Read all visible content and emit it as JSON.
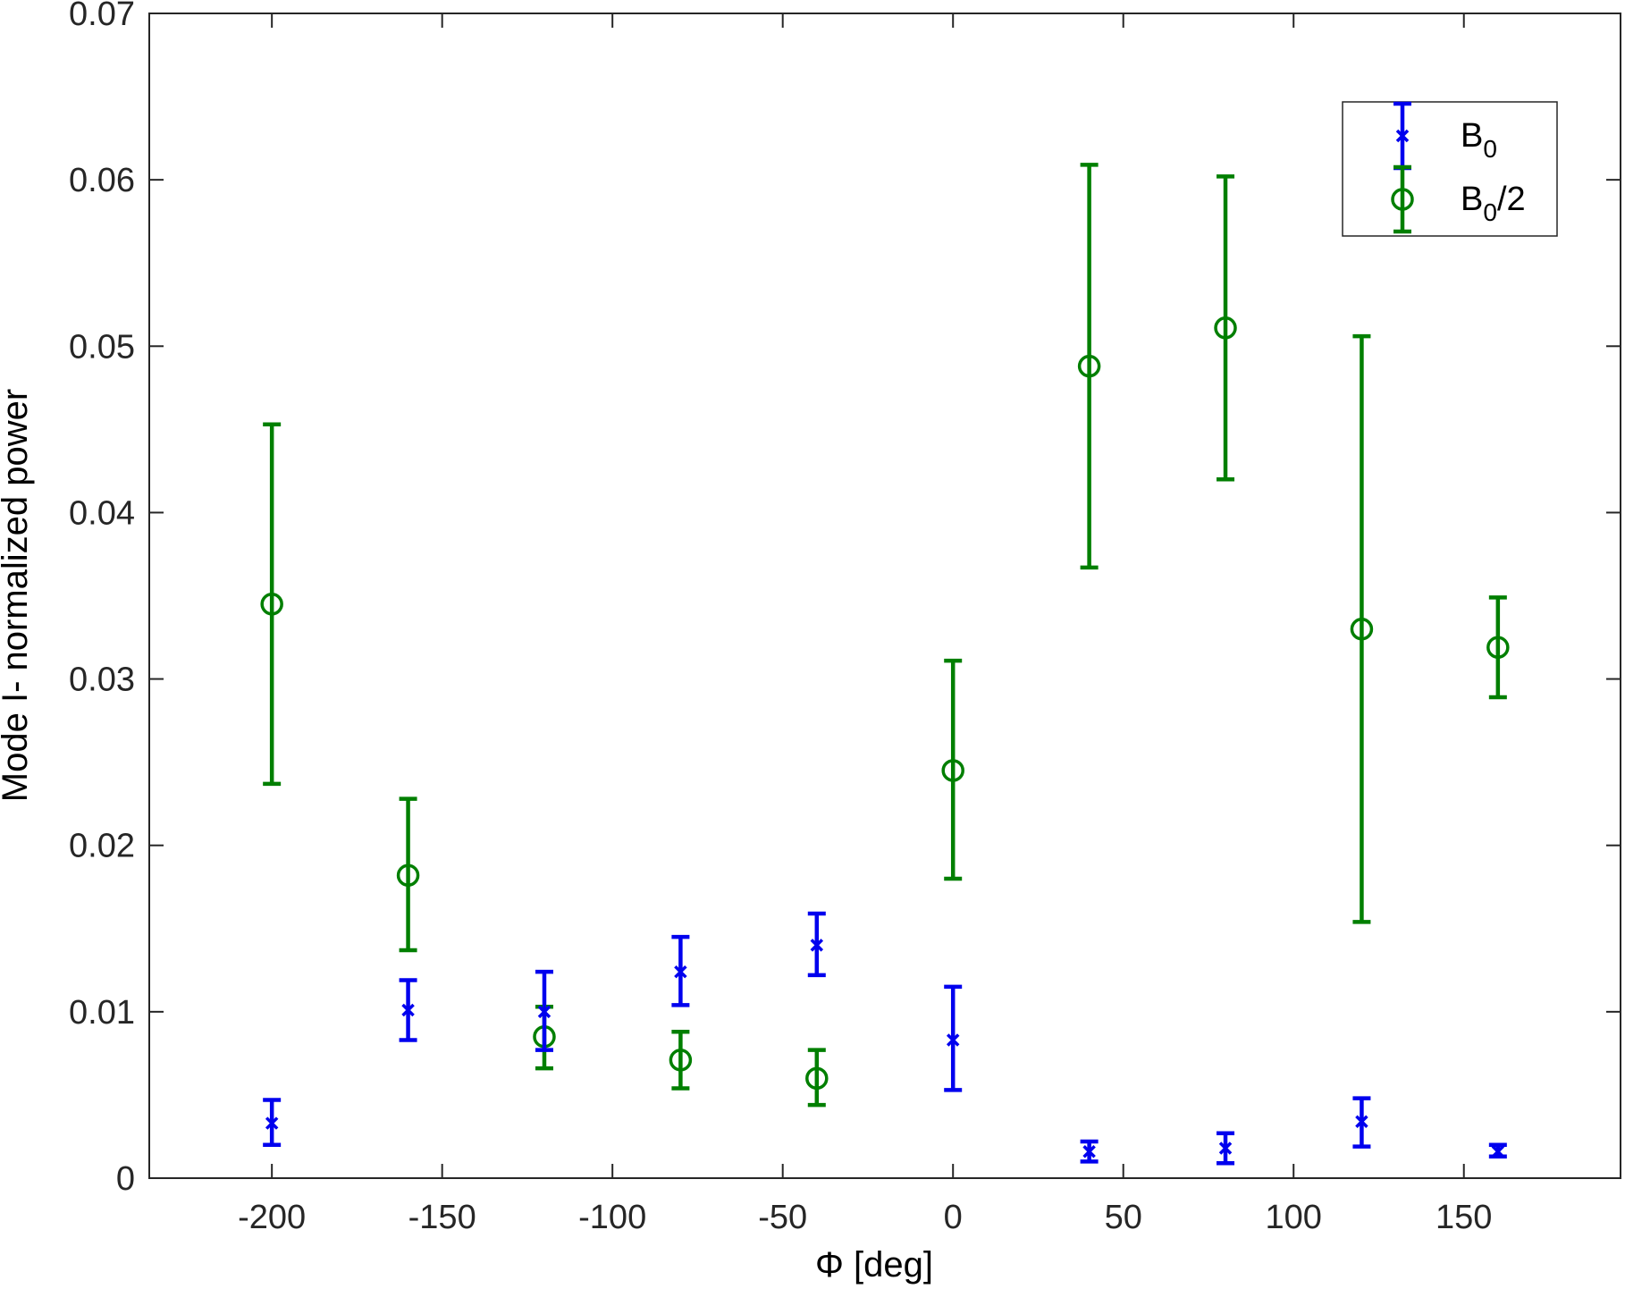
{
  "chart_data": {
    "type": "scatter",
    "title": "",
    "xlabel": "Φ [deg]",
    "ylabel": "Mode I- normalized power",
    "xlim": [
      -236,
      196
    ],
    "ylim": [
      0,
      0.07
    ],
    "xticks": [
      -200,
      -150,
      -100,
      -50,
      0,
      50,
      100,
      150
    ],
    "xtick_labels": [
      "-200",
      "-150",
      "-100",
      "-50",
      "0",
      "50",
      "100",
      "150"
    ],
    "yticks": [
      0,
      0.01,
      0.02,
      0.03,
      0.04,
      0.05,
      0.06,
      0.07
    ],
    "ytick_labels": [
      "0",
      "0.01",
      "0.02",
      "0.03",
      "0.04",
      "0.05",
      "0.06",
      "0.07"
    ],
    "grid": false,
    "legend_position": "top-right",
    "series": [
      {
        "name": "B0",
        "name_base": "B",
        "name_sub": "0",
        "name_suffix": "",
        "color": "#0000ee",
        "marker": "x",
        "points": [
          {
            "x": -200,
            "y": 0.0033,
            "low": 0.002,
            "high": 0.0047
          },
          {
            "x": -160,
            "y": 0.0101,
            "low": 0.0083,
            "high": 0.0119
          },
          {
            "x": -120,
            "y": 0.01,
            "low": 0.0077,
            "high": 0.0124
          },
          {
            "x": -80,
            "y": 0.0124,
            "low": 0.0104,
            "high": 0.0145
          },
          {
            "x": -40,
            "y": 0.014,
            "low": 0.0122,
            "high": 0.0159
          },
          {
            "x": 0,
            "y": 0.0083,
            "low": 0.0053,
            "high": 0.0115
          },
          {
            "x": 40,
            "y": 0.0016,
            "low": 0.001,
            "high": 0.0022
          },
          {
            "x": 80,
            "y": 0.0018,
            "low": 0.0009,
            "high": 0.0027
          },
          {
            "x": 120,
            "y": 0.0034,
            "low": 0.0019,
            "high": 0.0048
          },
          {
            "x": 160,
            "y": 0.0016,
            "low": 0.0013,
            "high": 0.002
          }
        ]
      },
      {
        "name": "B0/2",
        "name_base": "B",
        "name_sub": "0",
        "name_suffix": "/2",
        "color": "#007f00",
        "marker": "o",
        "points": [
          {
            "x": -200,
            "y": 0.0345,
            "low": 0.0237,
            "high": 0.0453
          },
          {
            "x": -160,
            "y": 0.0182,
            "low": 0.0137,
            "high": 0.0228
          },
          {
            "x": -120,
            "y": 0.0085,
            "low": 0.0066,
            "high": 0.0103
          },
          {
            "x": -80,
            "y": 0.0071,
            "low": 0.0054,
            "high": 0.0088
          },
          {
            "x": -40,
            "y": 0.006,
            "low": 0.0044,
            "high": 0.0077
          },
          {
            "x": 0,
            "y": 0.0245,
            "low": 0.018,
            "high": 0.0311
          },
          {
            "x": 40,
            "y": 0.0488,
            "low": 0.0367,
            "high": 0.0609
          },
          {
            "x": 80,
            "y": 0.0511,
            "low": 0.042,
            "high": 0.0602
          },
          {
            "x": 120,
            "y": 0.033,
            "low": 0.0154,
            "high": 0.0506
          },
          {
            "x": 160,
            "y": 0.0319,
            "low": 0.0289,
            "high": 0.0349
          }
        ]
      }
    ]
  }
}
